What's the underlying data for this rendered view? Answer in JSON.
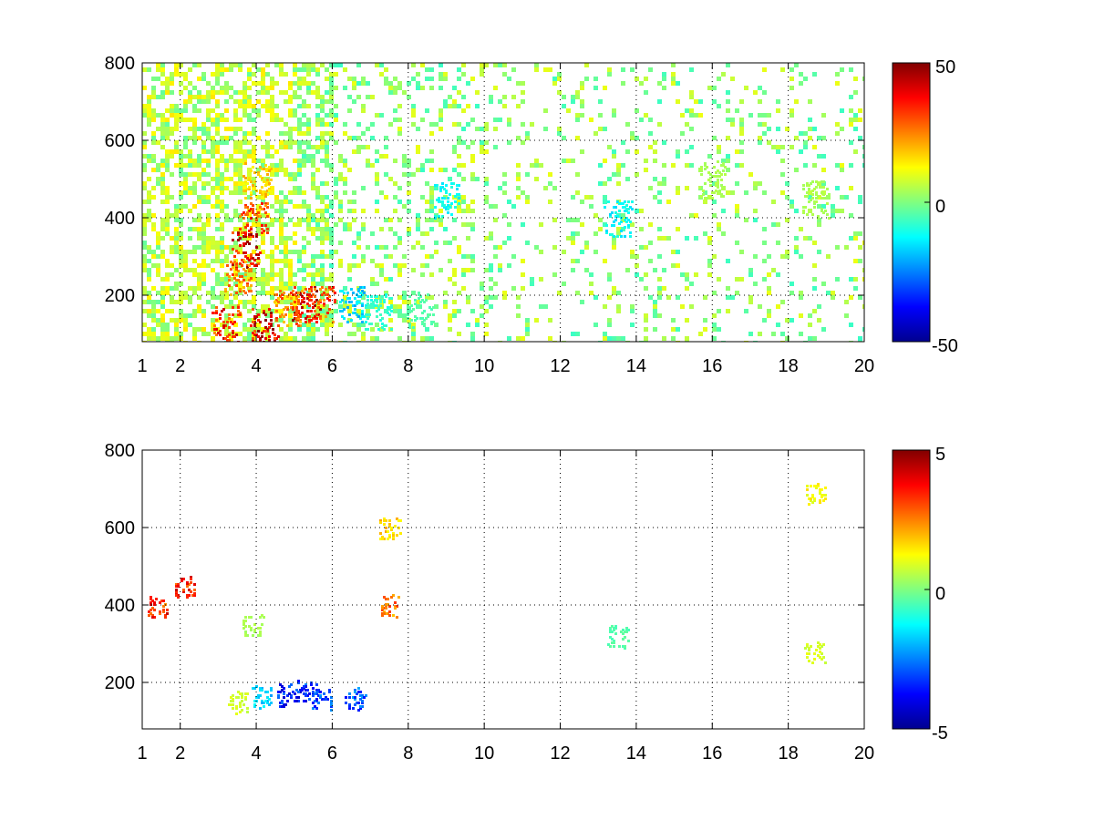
{
  "colormap": [
    "#00008f",
    "#0000ff",
    "#0080ff",
    "#00ffff",
    "#80ff80",
    "#ffff00",
    "#ff8000",
    "#ff0000",
    "#800000"
  ],
  "chart_data": [
    {
      "type": "heatmap",
      "title": "",
      "xlabel": "",
      "ylabel": "",
      "xlim": [
        1,
        20
      ],
      "ylim": [
        80,
        800
      ],
      "x_ticks": [
        "1",
        "2",
        "4",
        "6",
        "8",
        "10",
        "12",
        "14",
        "16",
        "18",
        "20"
      ],
      "y_ticks": [
        "200",
        "400",
        "600",
        "800"
      ],
      "grid": true,
      "colorbar": {
        "min": -50,
        "max": 50,
        "tick_labels": [
          "50",
          "0",
          "-50"
        ]
      },
      "features": [
        {
          "x": 3.9,
          "y": 400,
          "value": 35
        },
        {
          "x": 3.7,
          "y": 320,
          "value": 45
        },
        {
          "x": 3.5,
          "y": 250,
          "value": 30
        },
        {
          "x": 4.0,
          "y": 500,
          "value": 20
        },
        {
          "x": 3.2,
          "y": 130,
          "value": 40
        },
        {
          "x": 4.2,
          "y": 120,
          "value": 45
        },
        {
          "x": 5.3,
          "y": 180,
          "value": 45
        },
        {
          "x": 5.7,
          "y": 180,
          "value": 35
        },
        {
          "x": 4.8,
          "y": 170,
          "value": 30
        },
        {
          "x": 6.5,
          "y": 180,
          "value": -20
        },
        {
          "x": 7.2,
          "y": 160,
          "value": -10
        },
        {
          "x": 8.3,
          "y": 165,
          "value": -5
        },
        {
          "x": 9.0,
          "y": 450,
          "value": -15
        },
        {
          "x": 13.5,
          "y": 400,
          "value": -15
        },
        {
          "x": 16.0,
          "y": 500,
          "value": 5
        },
        {
          "x": 18.7,
          "y": 450,
          "value": 5
        }
      ]
    },
    {
      "type": "heatmap",
      "title": "",
      "xlabel": "",
      "ylabel": "",
      "xlim": [
        1,
        20
      ],
      "ylim": [
        80,
        800
      ],
      "x_ticks": [
        "1",
        "2",
        "4",
        "6",
        "8",
        "10",
        "12",
        "14",
        "16",
        "18",
        "20"
      ],
      "y_ticks": [
        "200",
        "400",
        "600",
        "800"
      ],
      "grid": true,
      "colorbar": {
        "min": -5,
        "max": 5,
        "tick_labels": [
          "5",
          "0",
          "-5"
        ]
      },
      "features": [
        {
          "x": 5.3,
          "y": 180,
          "value": -4
        },
        {
          "x": 5.7,
          "y": 160,
          "value": -3.5
        },
        {
          "x": 6.6,
          "y": 160,
          "value": -3.5
        },
        {
          "x": 4.8,
          "y": 170,
          "value": -4
        },
        {
          "x": 4.1,
          "y": 165,
          "value": -2
        },
        {
          "x": 3.5,
          "y": 150,
          "value": 1
        },
        {
          "x": 3.9,
          "y": 350,
          "value": 0.5
        },
        {
          "x": 7.5,
          "y": 600,
          "value": 2
        },
        {
          "x": 7.5,
          "y": 400,
          "value": 3
        },
        {
          "x": 18.7,
          "y": 690,
          "value": 1.5
        },
        {
          "x": 18.7,
          "y": 280,
          "value": 1
        },
        {
          "x": 13.5,
          "y": 320,
          "value": -0.5
        },
        {
          "x": 1.4,
          "y": 400,
          "value": 4
        },
        {
          "x": 2.1,
          "y": 450,
          "value": 4
        }
      ]
    }
  ]
}
